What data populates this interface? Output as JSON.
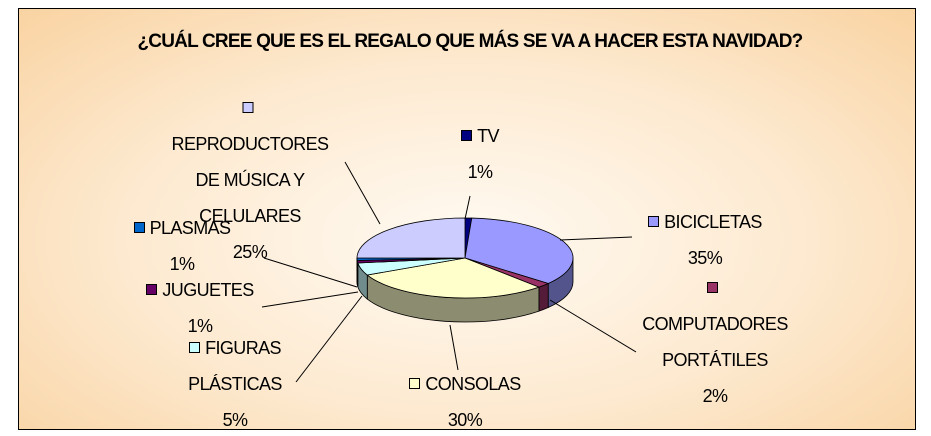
{
  "chart_data": {
    "type": "pie3d",
    "title": "¿CUÁL CREE QUE ES EL REGALO QUE MÁS SE VA A HACER ESTA NAVIDAD?",
    "categories": [
      "TV",
      "BICICLETAS",
      "COMPUTADORES PORTÁTILES",
      "CONSOLAS",
      "FIGURAS PLÁSTICAS",
      "JUGUETES",
      "PLASMAS",
      "REPRODUCTORES DE MÚSICA Y CELULARES"
    ],
    "values": [
      1,
      35,
      2,
      30,
      5,
      1,
      1,
      25
    ],
    "value_labels": [
      "1%",
      "35%",
      "2%",
      "30%",
      "5%",
      "1%",
      "1%",
      "25%"
    ],
    "colors": [
      "#000080",
      "#9999ff",
      "#993366",
      "#ffffcc",
      "#ccffff",
      "#660066",
      "#0066cc",
      "#ccccff"
    ]
  }
}
